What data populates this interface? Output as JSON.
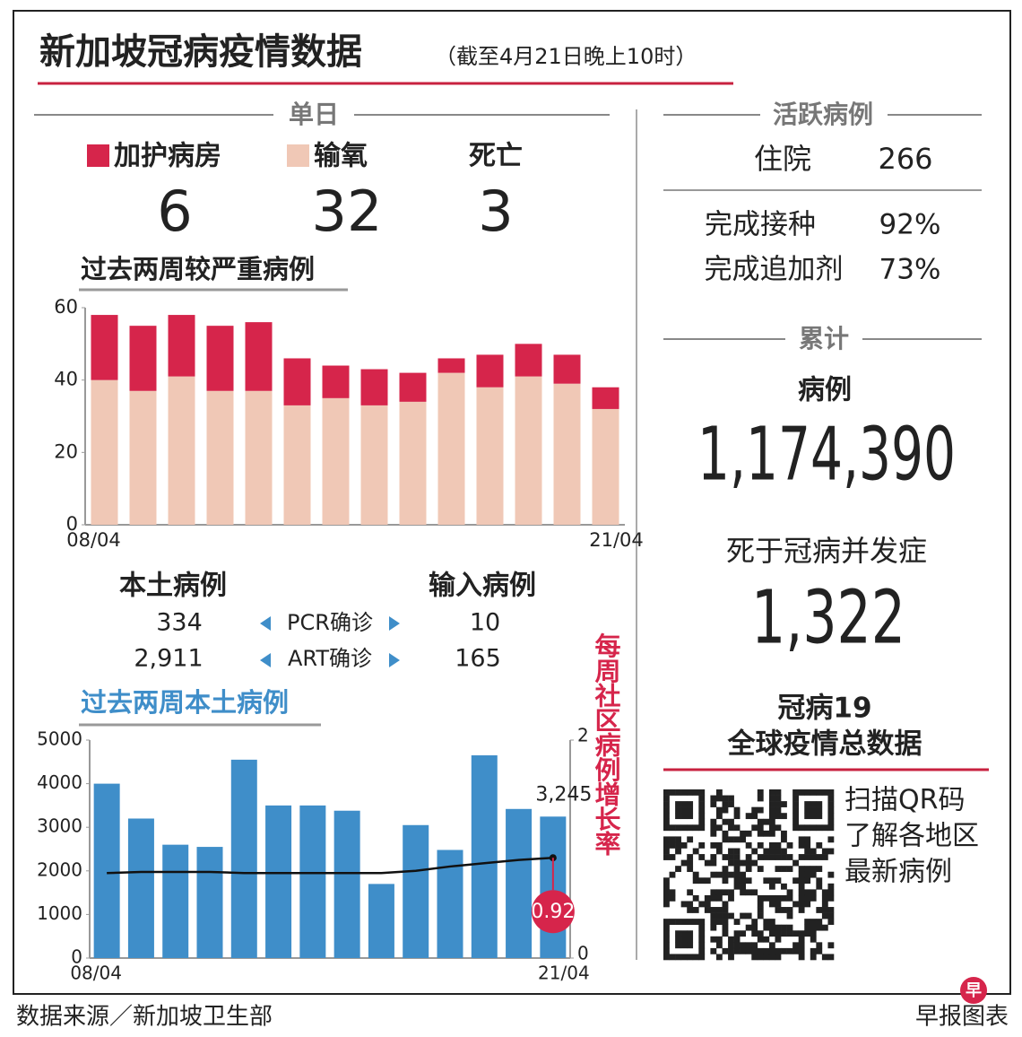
{
  "header": {
    "title": "新加坡冠病疫情数据",
    "subtitle": "（截至4月21日晚上10时）"
  },
  "single_day": {
    "title": "单日",
    "deaths": {
      "label": "死亡",
      "value": 3
    }
  },
  "chart_data": [
    {
      "type": "bar",
      "stacked": true,
      "title": "过去两周较严重病例",
      "categories": [
        "08/04",
        null,
        null,
        null,
        null,
        null,
        null,
        null,
        null,
        null,
        null,
        null,
        null,
        "21/04"
      ],
      "series": [
        {
          "name": "输氧",
          "color": "#f0c8b6",
          "values": [
            40,
            37,
            41,
            37,
            37,
            33,
            35,
            33,
            34,
            42,
            38,
            41,
            39,
            32
          ]
        },
        {
          "name": "加护病房",
          "color": "#d6254b",
          "values": [
            18,
            18,
            17,
            18,
            19,
            13,
            9,
            10,
            8,
            4,
            9,
            9,
            8,
            6
          ]
        }
      ],
      "ylim": [
        0,
        60
      ],
      "yticks": [
        0,
        20,
        40,
        60
      ]
    },
    {
      "type": "bar",
      "title": "过去两周本土病例",
      "categories": [
        "08/04",
        null,
        null,
        null,
        null,
        null,
        null,
        null,
        null,
        null,
        null,
        null,
        null,
        "21/04"
      ],
      "series": [
        {
          "type": "bar",
          "color": "#3f8ec9",
          "values": [
            4000,
            3200,
            2600,
            2550,
            4550,
            3500,
            3500,
            3380,
            1700,
            3050,
            2480,
            4650,
            3420,
            3245
          ],
          "value_labels": [
            null,
            null,
            null,
            null,
            null,
            null,
            null,
            null,
            null,
            null,
            null,
            null,
            null,
            "3,245"
          ]
        },
        {
          "type": "line",
          "axis": "y2",
          "color": "#111111",
          "values": [
            0.78,
            0.79,
            0.79,
            0.79,
            0.78,
            0.78,
            0.78,
            0.78,
            0.78,
            0.8,
            0.84,
            0.87,
            0.9,
            0.92
          ]
        }
      ],
      "ylim": [
        0,
        5000
      ],
      "yticks": [
        0,
        1000,
        2000,
        3000,
        4000,
        5000
      ],
      "y2lim": [
        0,
        2
      ],
      "y2ticks": [
        0,
        2
      ],
      "y2label": "每周社区病例增长率"
    }
  ],
  "cases_table": {
    "columns": [
      "本土病例",
      "输入病例"
    ],
    "rows": [
      [
        "334",
        "PCR确诊",
        "10"
      ],
      [
        "2,911",
        "ART确诊",
        "165"
      ]
    ]
  },
  "active": {
    "title": "活跃病例",
    "hospital_label": "住院",
    "hospital": "266",
    "rows": [
      [
        "完成接种",
        "92%"
      ],
      [
        "完成追加剂",
        "73%"
      ]
    ]
  },
  "cumulative": {
    "title": "累计",
    "cases_label": "病例",
    "cases": "1,174,390",
    "deaths_label": "死于冠病并发症",
    "deaths": "1,322"
  },
  "global": {
    "title": [
      "冠病19",
      "全球疫情总数据"
    ],
    "qr_text": [
      "扫描QR码",
      "了解各地区",
      "最新病例"
    ]
  },
  "footer": {
    "source": "数据来源／新加坡卫生部",
    "credit": "早报图表",
    "logo": "早"
  }
}
